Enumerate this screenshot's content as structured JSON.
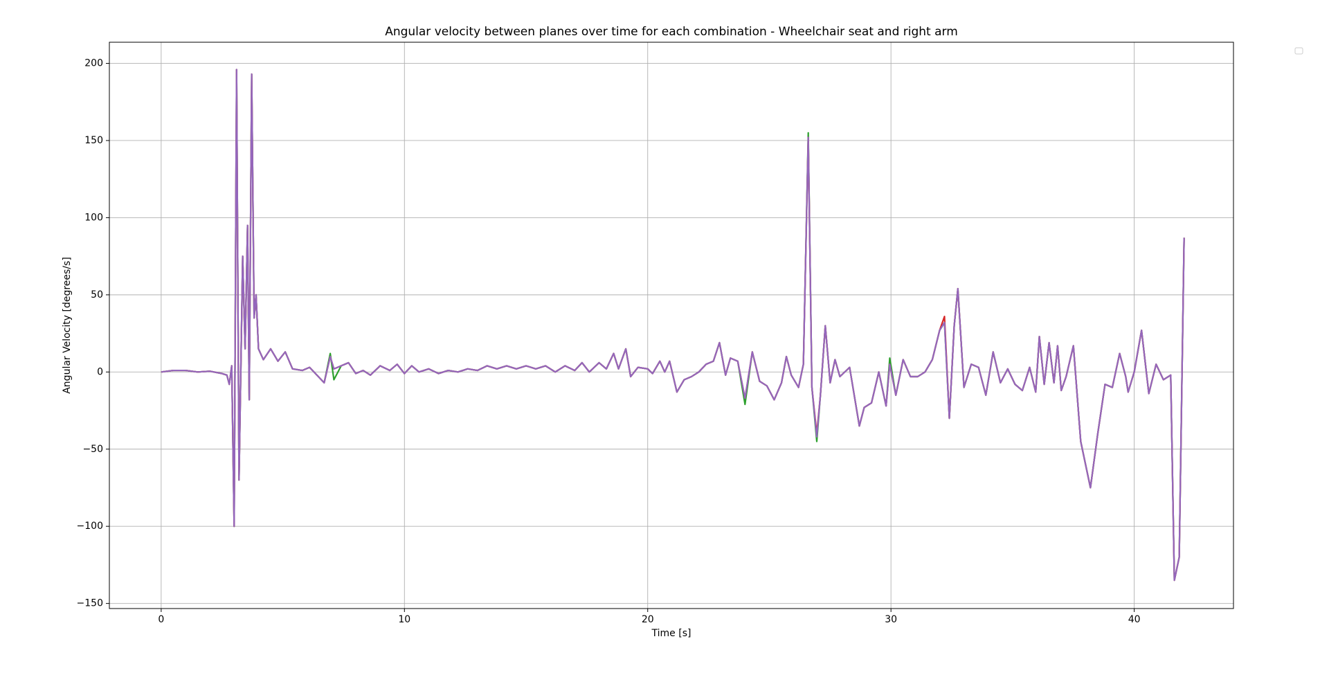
{
  "chart_data": {
    "type": "line",
    "title": "Angular velocity between planes over time for each combination - Wheelchair seat and right arm",
    "xlabel": "Time [s]",
    "ylabel": "Angular Velocity [degrees/s]",
    "grid": true,
    "xlim": [
      -2.13,
      44.08
    ],
    "ylim": [
      -153.3,
      213.7
    ],
    "xticks": [
      0,
      10,
      20,
      30,
      40
    ],
    "yticks": [
      {
        "value": -150,
        "label": "−150"
      },
      {
        "value": -100,
        "label": "−100"
      },
      {
        "value": -50,
        "label": "−50"
      },
      0,
      50,
      100,
      150,
      200
    ],
    "x": [
      0,
      0.5,
      1,
      1.5,
      2,
      2.5,
      2.7,
      2.8,
      2.9,
      3.0,
      3.1,
      3.2,
      3.35,
      3.45,
      3.55,
      3.62,
      3.72,
      3.82,
      3.9,
      4.0,
      4.2,
      4.5,
      4.8,
      5.1,
      5.4,
      5.8,
      6.1,
      6.4,
      6.7,
      6.95,
      7.1,
      7.4,
      7.7,
      8.0,
      8.3,
      8.6,
      9.0,
      9.4,
      9.7,
      10.0,
      10.3,
      10.6,
      11,
      11.4,
      11.8,
      12.2,
      12.6,
      13,
      13.4,
      13.8,
      14.2,
      14.6,
      15,
      15.4,
      15.8,
      16.2,
      16.6,
      17,
      17.3,
      17.6,
      18,
      18.3,
      18.6,
      18.8,
      19.1,
      19.3,
      19.6,
      20,
      20.2,
      20.5,
      20.7,
      20.9,
      21.2,
      21.5,
      21.8,
      22.1,
      22.4,
      22.7,
      22.95,
      23.2,
      23.4,
      23.7,
      24.0,
      24.3,
      24.6,
      24.9,
      25.2,
      25.5,
      25.7,
      25.9,
      26.2,
      26.4,
      26.6,
      26.75,
      26.95,
      27.1,
      27.3,
      27.5,
      27.7,
      27.9,
      28.3,
      28.7,
      28.9,
      29.2,
      29.5,
      29.8,
      29.95,
      30.2,
      30.5,
      30.8,
      31.1,
      31.4,
      31.7,
      32.0,
      32.2,
      32.4,
      32.6,
      32.75,
      33.0,
      33.3,
      33.6,
      33.9,
      34.2,
      34.5,
      34.8,
      35.1,
      35.4,
      35.7,
      35.95,
      36.1,
      36.3,
      36.5,
      36.7,
      36.85,
      37.0,
      37.2,
      37.5,
      37.8,
      38.2,
      38.5,
      38.8,
      39.1,
      39.4,
      39.65,
      39.75,
      40.0,
      40.3,
      40.6,
      40.9,
      41.2,
      41.5,
      41.65,
      41.85,
      42.05
    ],
    "series": [
      {
        "color": "#2ca02c",
        "values": [
          0,
          1,
          1,
          0,
          0.5,
          -1,
          -2,
          -8,
          4,
          -100,
          196,
          -70,
          75,
          15,
          95,
          -18,
          193,
          35,
          50,
          15,
          8,
          15,
          7,
          13,
          2,
          1,
          3,
          -2,
          -7,
          12,
          -5,
          4,
          6,
          -1,
          1,
          -2,
          4,
          1,
          5,
          -1,
          4,
          0,
          2,
          -1,
          1,
          0,
          2,
          1,
          4,
          2,
          4,
          2,
          4,
          2,
          4,
          0,
          4,
          1,
          6,
          0,
          6,
          2,
          12,
          2,
          15,
          -3,
          3,
          2,
          -1,
          7,
          0,
          7,
          -13,
          -5,
          -3,
          0,
          5,
          7,
          19,
          -2,
          9,
          7,
          -21,
          13,
          -6,
          -9,
          -18,
          -7,
          10,
          -2,
          -10,
          5,
          155,
          -10,
          -45,
          -15,
          30,
          -7,
          8,
          -3,
          3,
          -35,
          -23,
          -20,
          0,
          -22,
          9,
          -15,
          8,
          -3,
          -3,
          0,
          8,
          27,
          32,
          -30,
          30,
          54,
          -10,
          5,
          3,
          -15,
          13,
          -7,
          2,
          -8,
          -12,
          3,
          -13,
          23,
          -8,
          19,
          -7,
          17,
          -12,
          -3,
          17,
          -45,
          -75,
          -40,
          -8,
          -10,
          12,
          -3,
          -13,
          0,
          27,
          -14,
          5,
          -5,
          -2,
          -135,
          -120,
          87
        ]
      },
      {
        "color": "#d62728",
        "values": [
          0,
          1,
          1,
          0,
          0.5,
          -1,
          -2,
          -8,
          4,
          -100,
          196,
          -70,
          75,
          15,
          95,
          -18,
          193,
          35,
          50,
          15,
          8,
          15,
          7,
          13,
          2,
          1,
          3,
          -2,
          -7,
          10,
          2,
          4,
          6,
          -1,
          1,
          -2,
          4,
          1,
          5,
          -1,
          4,
          0,
          2,
          -1,
          1,
          0,
          2,
          1,
          4,
          2,
          4,
          2,
          4,
          2,
          4,
          0,
          4,
          1,
          6,
          0,
          6,
          2,
          12,
          2,
          15,
          -3,
          3,
          2,
          -1,
          7,
          0,
          7,
          -13,
          -5,
          -3,
          0,
          5,
          7,
          19,
          -2,
          9,
          7,
          -17,
          13,
          -6,
          -9,
          -18,
          -7,
          10,
          -2,
          -10,
          5,
          152,
          -10,
          -40,
          -15,
          30,
          -7,
          8,
          -3,
          3,
          -35,
          -23,
          -20,
          0,
          -22,
          5,
          -15,
          8,
          -3,
          -3,
          0,
          8,
          27,
          36,
          -30,
          30,
          54,
          -10,
          5,
          3,
          -15,
          13,
          -7,
          2,
          -8,
          -12,
          3,
          -13,
          23,
          -8,
          19,
          -7,
          17,
          -12,
          -3,
          17,
          -45,
          -75,
          -40,
          -8,
          -10,
          12,
          -3,
          -13,
          0,
          27,
          -14,
          5,
          -5,
          -2,
          -135,
          -120,
          87
        ]
      },
      {
        "color": "#9467bd",
        "values": [
          0,
          1,
          1,
          0,
          0.5,
          -1,
          -2,
          -8,
          4,
          -100,
          196,
          -70,
          75,
          15,
          95,
          -18,
          193,
          35,
          50,
          15,
          8,
          15,
          7,
          13,
          2,
          1,
          3,
          -2,
          -7,
          10,
          2,
          4,
          6,
          -1,
          1,
          -2,
          4,
          1,
          5,
          -1,
          4,
          0,
          2,
          -1,
          1,
          0,
          2,
          1,
          4,
          2,
          4,
          2,
          4,
          2,
          4,
          0,
          4,
          1,
          6,
          0,
          6,
          2,
          12,
          2,
          15,
          -3,
          3,
          2,
          -1,
          7,
          0,
          7,
          -13,
          -5,
          -3,
          0,
          5,
          7,
          19,
          -2,
          9,
          7,
          -17,
          13,
          -6,
          -9,
          -18,
          -7,
          10,
          -2,
          -10,
          5,
          152,
          -10,
          -42,
          -15,
          30,
          -7,
          8,
          -3,
          3,
          -35,
          -23,
          -20,
          0,
          -22,
          5,
          -15,
          8,
          -3,
          -3,
          0,
          8,
          27,
          32,
          -30,
          30,
          54,
          -10,
          5,
          3,
          -15,
          13,
          -7,
          2,
          -8,
          -12,
          3,
          -13,
          23,
          -8,
          19,
          -7,
          17,
          -12,
          -3,
          17,
          -45,
          -75,
          -40,
          -8,
          -10,
          12,
          -3,
          -13,
          0,
          27,
          -14,
          5,
          -5,
          -2,
          -135,
          -120,
          87
        ]
      }
    ]
  }
}
